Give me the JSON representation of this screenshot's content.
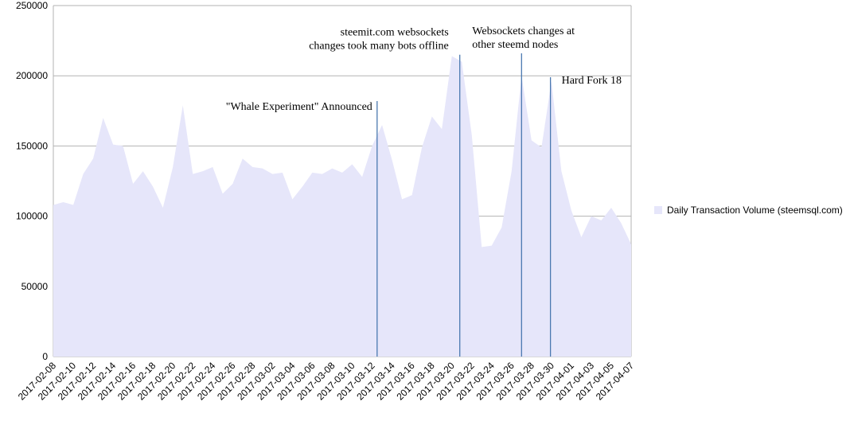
{
  "chart_data": {
    "type": "area",
    "categories": [
      "2017-02-08",
      null,
      "2017-02-10",
      null,
      "2017-02-12",
      null,
      "2017-02-14",
      null,
      "2017-02-16",
      null,
      "2017-02-18",
      null,
      "2017-02-20",
      null,
      "2017-02-22",
      null,
      "2017-02-24",
      null,
      "2017-02-26",
      null,
      "2017-02-28",
      null,
      "2017-03-02",
      null,
      "2017-03-04",
      null,
      "2017-03-06",
      null,
      "2017-03-08",
      null,
      "2017-03-10",
      null,
      "2017-03-12",
      null,
      "2017-03-14",
      null,
      "2017-03-16",
      null,
      "2017-03-18",
      null,
      "2017-03-20",
      null,
      "2017-03-22",
      null,
      "2017-03-24",
      null,
      "2017-03-26",
      null,
      "2017-03-28",
      null,
      "2017-03-30",
      null,
      "2017-04-01",
      null,
      "2017-04-03",
      null,
      "2017-04-05",
      null,
      "2017-04-07"
    ],
    "series": [
      {
        "name": "Daily Transaction Volume (steemsql.com)",
        "color": "#e6e6fa",
        "values": [
          108000,
          110000,
          108000,
          130000,
          141000,
          170000,
          151000,
          150000,
          123000,
          132000,
          121000,
          106000,
          135000,
          179000,
          130000,
          132000,
          135000,
          116000,
          123000,
          141000,
          135000,
          134000,
          130000,
          131000,
          112000,
          121000,
          131000,
          130000,
          134000,
          131000,
          137000,
          128000,
          150000,
          165000,
          140000,
          112000,
          115000,
          149000,
          171000,
          162000,
          214000,
          210000,
          158000,
          78000,
          79000,
          92000,
          132000,
          200000,
          154000,
          149000,
          196000,
          132000,
          104000,
          85000,
          100000,
          97000,
          106000,
          95000,
          80000
        ]
      }
    ],
    "ylim": [
      0,
      250000
    ],
    "yticks": [
      0,
      50000,
      100000,
      150000,
      200000,
      250000
    ],
    "grid": true,
    "legend": "right",
    "annotations": [
      {
        "lines": [
          "\"Whale Experiment\" Announced"
        ],
        "x": 32.5,
        "y": 182000
      },
      {
        "lines": [
          "steemit.com websockets",
          "changes took many bots offline"
        ],
        "x": 40.8,
        "y": 215000
      },
      {
        "lines": [
          "Websockets changes at",
          "other steemd nodes"
        ],
        "x": 47,
        "y": 216000
      },
      {
        "lines": [
          "Hard Fork 18"
        ],
        "x": 49.9,
        "y": 199000
      }
    ],
    "annotation_color": "#4a78b0"
  }
}
